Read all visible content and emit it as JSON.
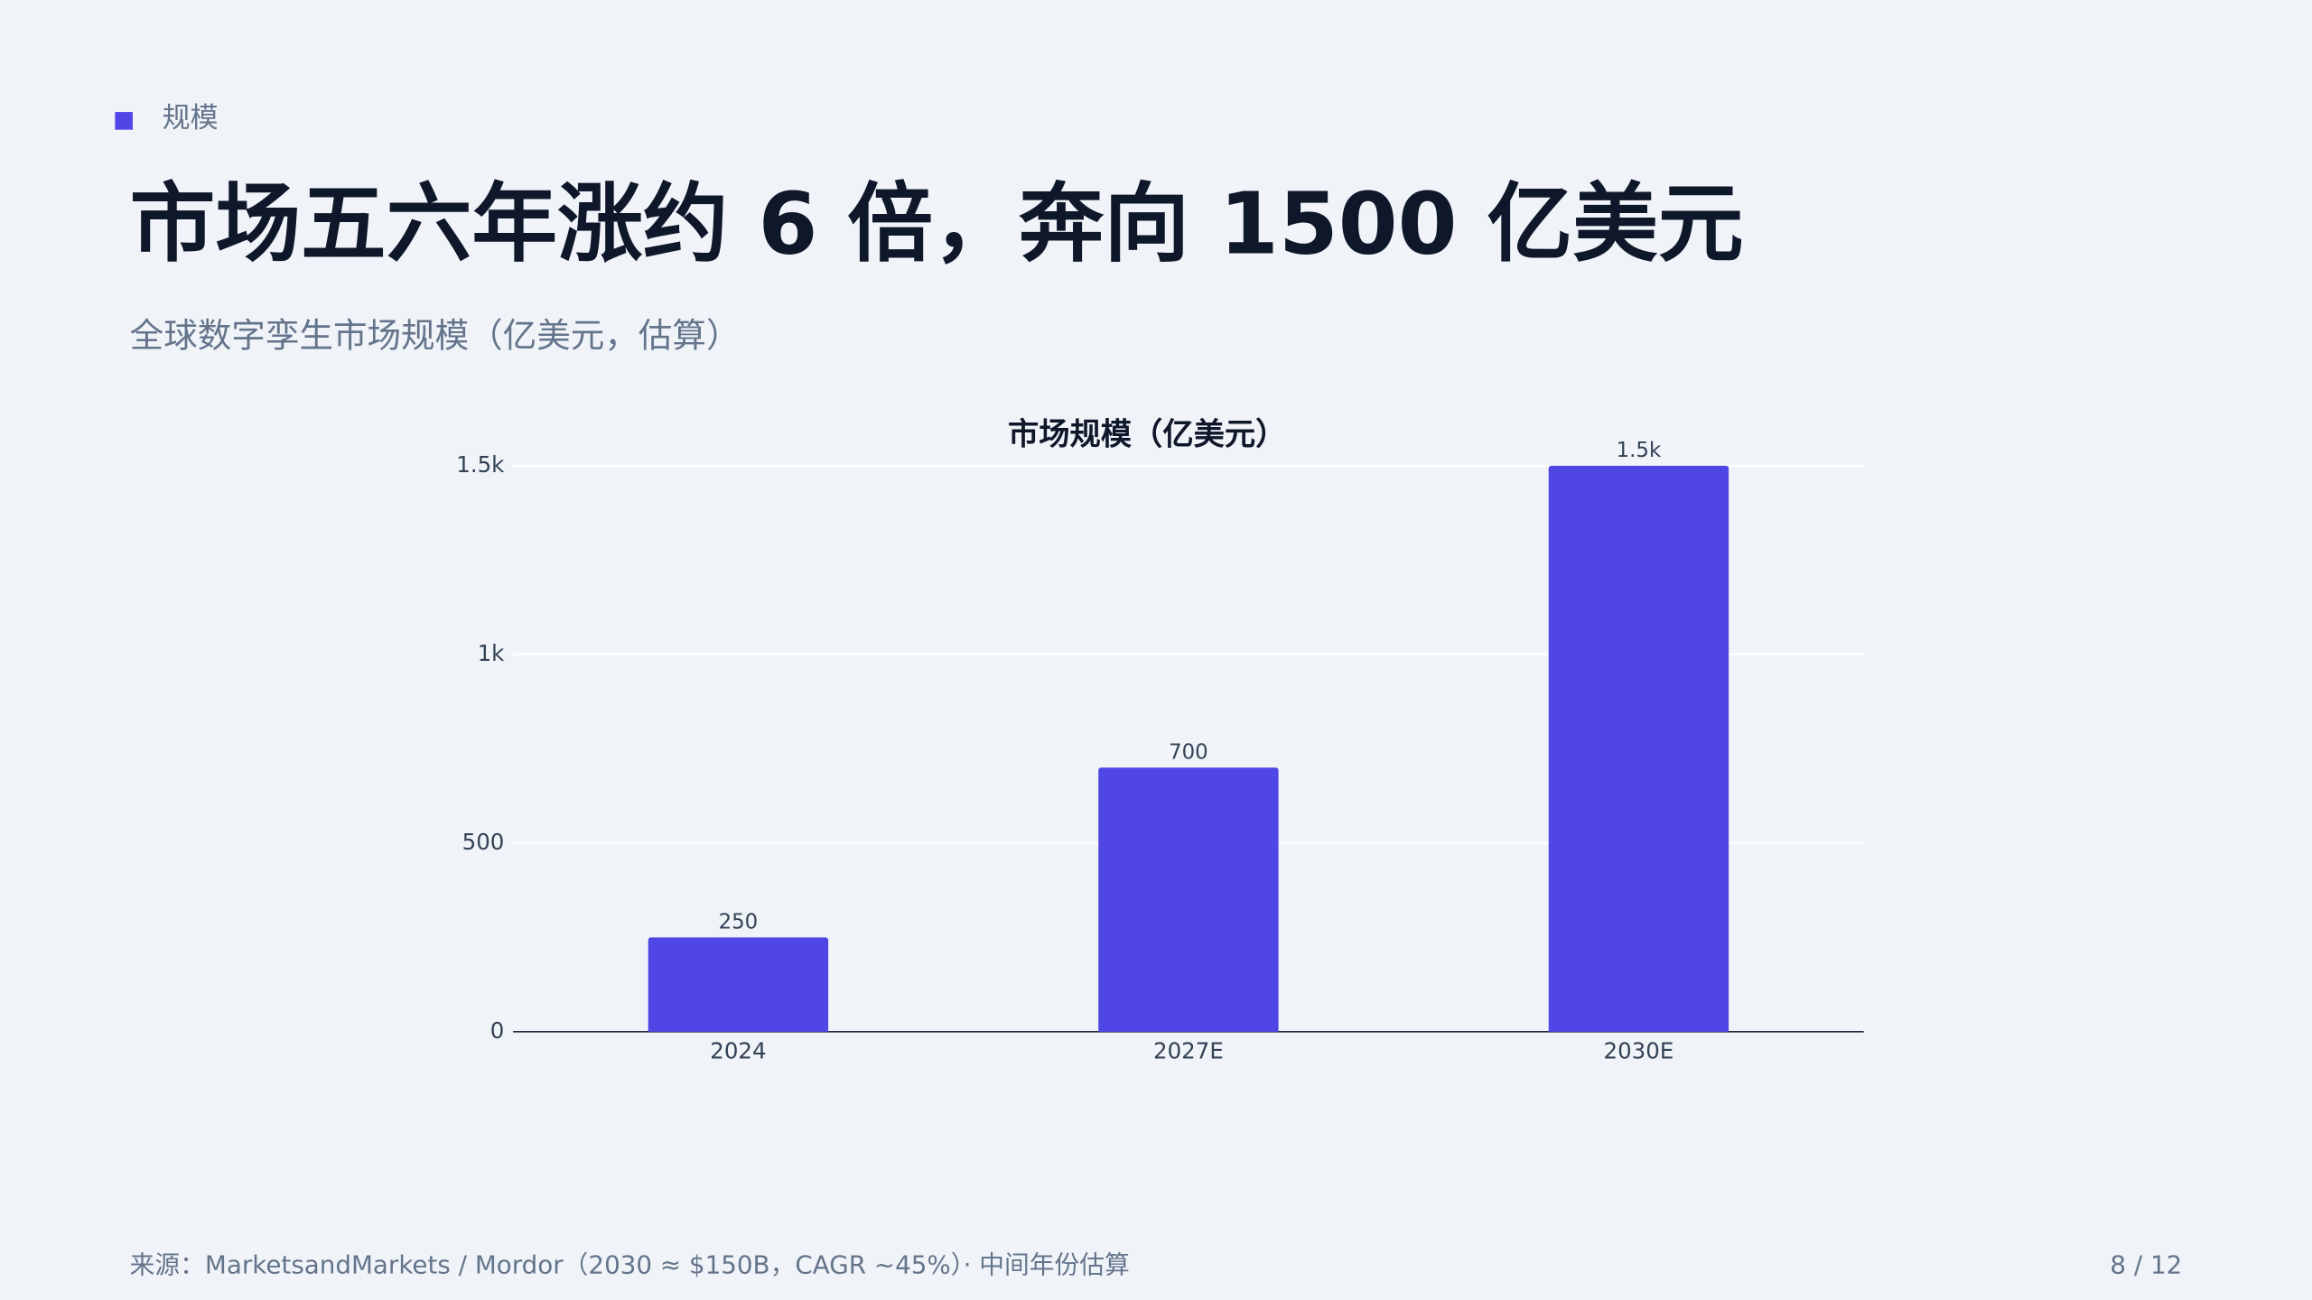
{
  "section": "规模",
  "title": "市场五六年涨约 6 倍，奔向 1500 亿美元",
  "subtitle": "全球数字孪生市场规模（亿美元，估算）",
  "chart_data": {
    "type": "bar",
    "title": "市场规模（亿美元）",
    "categories": [
      "2024",
      "2027E",
      "2030E"
    ],
    "values": [
      250,
      700,
      1500
    ],
    "value_labels": [
      "250",
      "700",
      "1.5k"
    ],
    "color": "#4f46e5",
    "ylim": [
      0,
      1500
    ],
    "yticks": [
      0,
      500,
      {
        "value": 1000,
        "label": "1k"
      },
      {
        "value": 1500,
        "label": "1.5k"
      }
    ],
    "grid": true
  },
  "footer": {
    "source": "来源：MarketsandMarkets / Mordor（2030 ≈ $150B，CAGR ~45%）· 中间年份估算",
    "page": "8 / 12"
  }
}
